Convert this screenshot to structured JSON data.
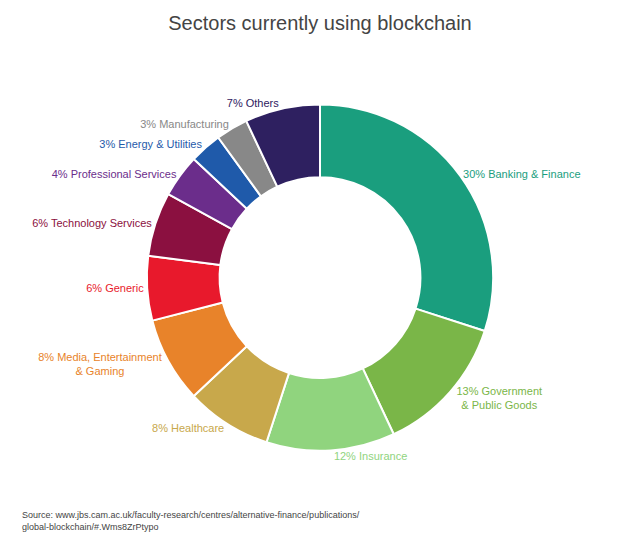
{
  "chart_data": {
    "type": "pie",
    "title": "Sectors currently using blockchain",
    "categories": [
      "30% Banking & Finance",
      "13% Government\n& Public Goods",
      "12% Insurance",
      "8% Healthcare",
      "8% Media, Entertainment\n& Gaming",
      "6% Generic",
      "6% Technology Services",
      "4% Professional Services",
      "3% Energy & Utilities",
      "3% Manufacturing",
      "7% Others"
    ],
    "values": [
      30,
      13,
      12,
      8,
      8,
      6,
      6,
      4,
      3,
      3,
      7
    ],
    "colors": [
      "#1a9e7e",
      "#7ab648",
      "#90d47e",
      "#c8a84b",
      "#e8832a",
      "#e8192c",
      "#8b1040",
      "#6b2d8b",
      "#1f5aaa",
      "#888888",
      "#2e2060"
    ],
    "annotations": [
      "Source: www.jbs.cam.ac.uk/faculty-research/centres/alternative-finance/publications/\nglobal-blockchain/#.Wms8ZrPtypo"
    ]
  }
}
